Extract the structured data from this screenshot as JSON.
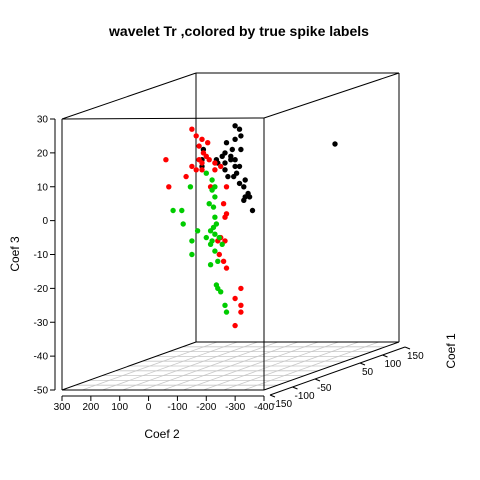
{
  "chart_data": {
    "type": "scatter",
    "title": "wavelet Tr ,colored by true spike labels",
    "xlabel": "Coef 2",
    "ylabel": "Coef 3",
    "zlabel": "Coef 1",
    "xlim": [
      300,
      -400
    ],
    "ylim": [
      -50,
      30
    ],
    "zlim": [
      -150,
      150
    ],
    "x_ticks": [
      "300",
      "200",
      "100",
      "0",
      "-100",
      "-200",
      "-300",
      "-400"
    ],
    "y_ticks": [
      "30",
      "20",
      "10",
      "0",
      "-10",
      "-20",
      "-30",
      "-40",
      "-50"
    ],
    "z_ticks": [
      "150",
      "100",
      "50",
      "-50",
      "-100",
      "-150"
    ],
    "grid": "floor",
    "legend": "none",
    "series": [
      {
        "color": "#000000",
        "points": [
          {
            "x": -300,
            "y": 28,
            "z": 0
          },
          {
            "x": -315,
            "y": 27,
            "z": 0
          },
          {
            "x": -320,
            "y": 25,
            "z": 0
          },
          {
            "x": -300,
            "y": 24,
            "z": 0
          },
          {
            "x": -270,
            "y": 23,
            "z": 0
          },
          {
            "x": -290,
            "y": 21,
            "z": 0
          },
          {
            "x": -320,
            "y": 21,
            "z": 0
          },
          {
            "x": -265,
            "y": 20,
            "z": 0
          },
          {
            "x": -285,
            "y": 19,
            "z": 0
          },
          {
            "x": -255,
            "y": 19,
            "z": 0
          },
          {
            "x": -285,
            "y": 18,
            "z": 0
          },
          {
            "x": -300,
            "y": 18,
            "z": 0
          },
          {
            "x": -235,
            "y": 18,
            "z": 0
          },
          {
            "x": -185,
            "y": 18,
            "z": 0
          },
          {
            "x": -240,
            "y": 17,
            "z": 0
          },
          {
            "x": -315,
            "y": 16,
            "z": 0
          },
          {
            "x": -305,
            "y": 14,
            "z": 0
          },
          {
            "x": -275,
            "y": 13,
            "z": 0
          },
          {
            "x": -335,
            "y": 12,
            "z": 0
          },
          {
            "x": -315,
            "y": 11,
            "z": 0
          },
          {
            "x": -330,
            "y": 10,
            "z": 0
          },
          {
            "x": -345,
            "y": 8,
            "z": 0
          },
          {
            "x": -335,
            "y": 7,
            "z": 0
          },
          {
            "x": -350,
            "y": 7,
            "z": 0
          },
          {
            "x": -265,
            "y": 15,
            "z": 0
          },
          {
            "x": -360,
            "y": 3,
            "z": 0
          },
          {
            "x": -300,
            "y": 16,
            "z": 0
          },
          {
            "x": -295,
            "y": 13,
            "z": 0
          },
          {
            "x": -265,
            "y": 17,
            "z": 0
          },
          {
            "x": -185,
            "y": 16,
            "z": 0
          },
          {
            "x": -330,
            "y": 6,
            "z": 0
          },
          {
            "x": -190,
            "y": 21,
            "z": 0
          }
        ]
      },
      {
        "color": "#ff0000",
        "points": [
          {
            "x": -150,
            "y": 27,
            "z": 0
          },
          {
            "x": -165,
            "y": 25,
            "z": 0
          },
          {
            "x": -185,
            "y": 24,
            "z": 0
          },
          {
            "x": -205,
            "y": 23,
            "z": 0
          },
          {
            "x": -175,
            "y": 22,
            "z": 0
          },
          {
            "x": -190,
            "y": 20,
            "z": 0
          },
          {
            "x": -200,
            "y": 19,
            "z": 0
          },
          {
            "x": -210,
            "y": 18,
            "z": 0
          },
          {
            "x": -175,
            "y": 18,
            "z": 0
          },
          {
            "x": -185,
            "y": 17,
            "z": 0
          },
          {
            "x": -230,
            "y": 17,
            "z": 0
          },
          {
            "x": -250,
            "y": 16,
            "z": 0
          },
          {
            "x": -230,
            "y": 15,
            "z": 0
          },
          {
            "x": -185,
            "y": 15,
            "z": 0
          },
          {
            "x": -150,
            "y": 16,
            "z": 0
          },
          {
            "x": -130,
            "y": 13,
            "z": 0
          },
          {
            "x": -60,
            "y": 18,
            "z": 0
          },
          {
            "x": -70,
            "y": 10,
            "z": 0
          },
          {
            "x": -270,
            "y": 10,
            "z": 0
          },
          {
            "x": -260,
            "y": 5,
            "z": 0
          },
          {
            "x": -270,
            "y": 2,
            "z": 0
          },
          {
            "x": -265,
            "y": 1,
            "z": 0
          },
          {
            "x": -250,
            "y": -5,
            "z": 0
          },
          {
            "x": -240,
            "y": -6,
            "z": 0
          },
          {
            "x": -265,
            "y": -6,
            "z": 0
          },
          {
            "x": -245,
            "y": -10,
            "z": 0
          },
          {
            "x": -260,
            "y": -12,
            "z": 0
          },
          {
            "x": -270,
            "y": -14,
            "z": 0
          },
          {
            "x": -320,
            "y": -20,
            "z": 0
          },
          {
            "x": -300,
            "y": -23,
            "z": 0
          },
          {
            "x": -320,
            "y": -25,
            "z": 0
          },
          {
            "x": -320,
            "y": -27,
            "z": 0
          },
          {
            "x": -300,
            "y": -31,
            "z": 0
          },
          {
            "x": -165,
            "y": 15,
            "z": 0
          },
          {
            "x": -215,
            "y": 10,
            "z": 0
          }
        ]
      },
      {
        "color": "#00cc00",
        "points": [
          {
            "x": -200,
            "y": 14,
            "z": 0
          },
          {
            "x": -220,
            "y": 12,
            "z": 0
          },
          {
            "x": -230,
            "y": 10,
            "z": 0
          },
          {
            "x": -145,
            "y": 10,
            "z": 0
          },
          {
            "x": -220,
            "y": 9,
            "z": 0
          },
          {
            "x": -230,
            "y": 7,
            "z": 0
          },
          {
            "x": -210,
            "y": 5,
            "z": 0
          },
          {
            "x": -225,
            "y": 4,
            "z": 0
          },
          {
            "x": -85,
            "y": 3,
            "z": 0
          },
          {
            "x": -115,
            "y": 3,
            "z": 0
          },
          {
            "x": -230,
            "y": 1,
            "z": 0
          },
          {
            "x": -235,
            "y": -1,
            "z": 0
          },
          {
            "x": -120,
            "y": -1,
            "z": 0
          },
          {
            "x": -225,
            "y": -2,
            "z": 0
          },
          {
            "x": -170,
            "y": -3,
            "z": 0
          },
          {
            "x": -215,
            "y": -3,
            "z": 0
          },
          {
            "x": -230,
            "y": -4,
            "z": 0
          },
          {
            "x": -245,
            "y": -5,
            "z": 0
          },
          {
            "x": -200,
            "y": -5,
            "z": 0
          },
          {
            "x": -150,
            "y": -6,
            "z": 0
          },
          {
            "x": -220,
            "y": -6,
            "z": 0
          },
          {
            "x": -255,
            "y": -7,
            "z": 0
          },
          {
            "x": -215,
            "y": -7,
            "z": 0
          },
          {
            "x": -230,
            "y": -9,
            "z": 0
          },
          {
            "x": -150,
            "y": -10,
            "z": 0
          },
          {
            "x": -240,
            "y": -12,
            "z": 0
          },
          {
            "x": -215,
            "y": -13,
            "z": 0
          },
          {
            "x": -235,
            "y": -19,
            "z": 0
          },
          {
            "x": -240,
            "y": -20,
            "z": 0
          },
          {
            "x": -250,
            "y": -21,
            "z": 0
          },
          {
            "x": -265,
            "y": -25,
            "z": 0
          },
          {
            "x": -270,
            "y": -27,
            "z": 0
          }
        ]
      }
    ]
  }
}
